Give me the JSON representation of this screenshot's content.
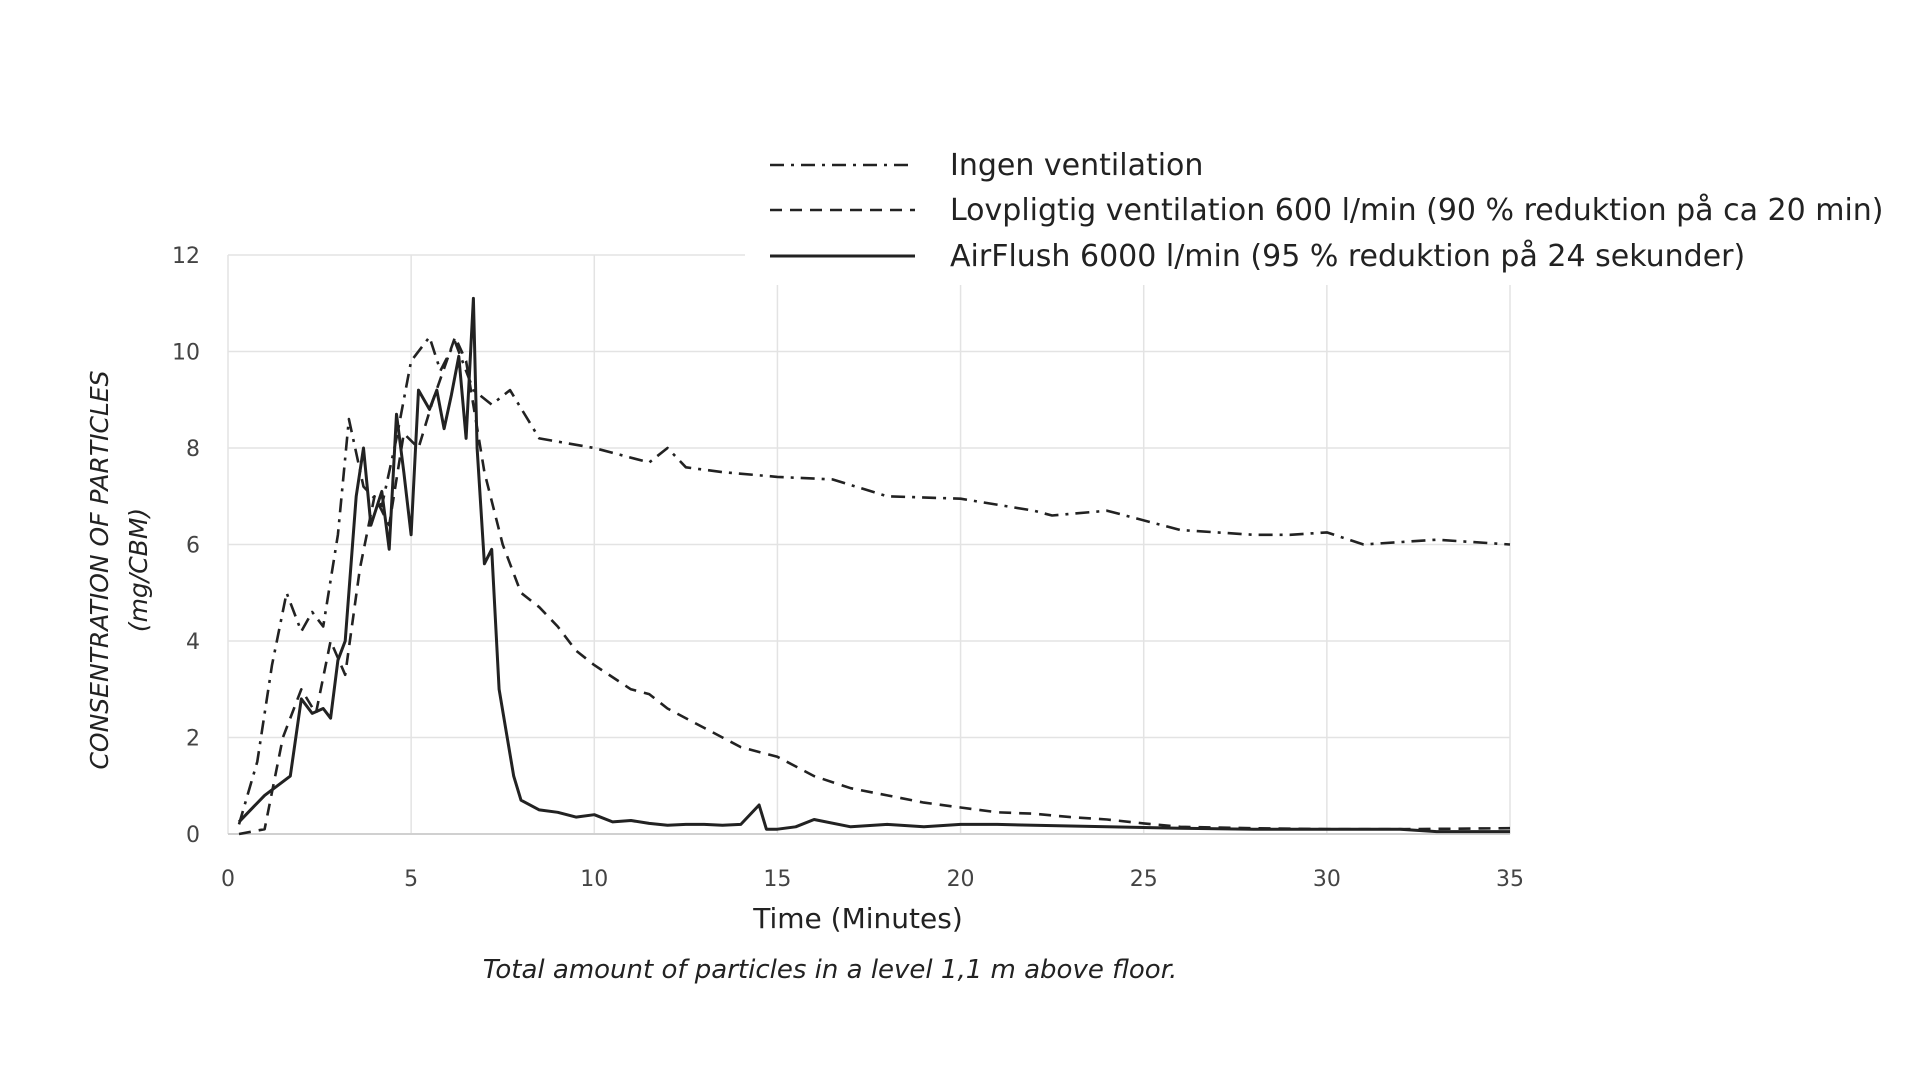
{
  "chart_data": {
    "type": "line",
    "caption": "Total amount of particles in a level 1,1 m above floor.",
    "xlabel": "Time (Minutes)",
    "ylabel_line1": "CONSENTRATION OF PARTICLES",
    "ylabel_line2": "(mg/CBM)",
    "xlim": [
      0,
      35
    ],
    "ylim": [
      0,
      12
    ],
    "xticks": [
      "0",
      "5",
      "10",
      "15",
      "20",
      "25",
      "30",
      "35"
    ],
    "yticks": [
      "0",
      "2",
      "4",
      "6",
      "8",
      "10",
      "12"
    ],
    "grid": true,
    "legend_position": "top-right",
    "series": [
      {
        "name": "Ingen ventilation",
        "style": "dashdot",
        "color": "#222222",
        "points": [
          [
            0.3,
            0.2
          ],
          [
            0.8,
            1.5
          ],
          [
            1.2,
            3.5
          ],
          [
            1.6,
            5.0
          ],
          [
            2.0,
            4.2
          ],
          [
            2.3,
            4.6
          ],
          [
            2.6,
            4.3
          ],
          [
            3.0,
            6.2
          ],
          [
            3.3,
            8.6
          ],
          [
            3.7,
            7.2
          ],
          [
            4.2,
            6.8
          ],
          [
            4.6,
            8.2
          ],
          [
            5.0,
            9.8
          ],
          [
            5.5,
            10.3
          ],
          [
            5.8,
            9.6
          ],
          [
            6.2,
            10.2
          ],
          [
            6.7,
            9.2
          ],
          [
            7.2,
            8.9
          ],
          [
            7.7,
            9.2
          ],
          [
            8.5,
            8.2
          ],
          [
            10,
            8.0
          ],
          [
            11.5,
            7.7
          ],
          [
            12,
            8.0
          ],
          [
            12.5,
            7.6
          ],
          [
            13.5,
            7.5
          ],
          [
            15,
            7.4
          ],
          [
            16.5,
            7.35
          ],
          [
            18,
            7.0
          ],
          [
            20,
            6.95
          ],
          [
            22,
            6.7
          ],
          [
            22.5,
            6.6
          ],
          [
            24,
            6.7
          ],
          [
            26,
            6.3
          ],
          [
            28,
            6.2
          ],
          [
            29,
            6.2
          ],
          [
            30,
            6.25
          ],
          [
            31,
            6.0
          ],
          [
            33,
            6.1
          ],
          [
            35,
            6.0
          ]
        ]
      },
      {
        "name": "Lovpligtig ventilation 600 l/min (90 % reduktion på ca 20 min)",
        "style": "dashed",
        "color": "#222222",
        "points": [
          [
            0.3,
            0
          ],
          [
            1.0,
            0.1
          ],
          [
            1.5,
            2.0
          ],
          [
            2.0,
            3.0
          ],
          [
            2.4,
            2.5
          ],
          [
            2.8,
            4.0
          ],
          [
            3.2,
            3.3
          ],
          [
            3.6,
            5.5
          ],
          [
            4.0,
            7.0
          ],
          [
            4.4,
            6.4
          ],
          [
            4.8,
            8.3
          ],
          [
            5.2,
            8.0
          ],
          [
            5.6,
            9.0
          ],
          [
            6.2,
            10.3
          ],
          [
            6.5,
            9.8
          ],
          [
            7.0,
            7.5
          ],
          [
            7.5,
            6.0
          ],
          [
            8.0,
            5.0
          ],
          [
            8.5,
            4.7
          ],
          [
            9.0,
            4.3
          ],
          [
            9.5,
            3.8
          ],
          [
            10,
            3.5
          ],
          [
            11,
            3.0
          ],
          [
            11.5,
            2.9
          ],
          [
            12,
            2.6
          ],
          [
            13,
            2.2
          ],
          [
            14,
            1.8
          ],
          [
            15,
            1.6
          ],
          [
            16,
            1.2
          ],
          [
            17,
            0.95
          ],
          [
            18,
            0.8
          ],
          [
            19,
            0.65
          ],
          [
            20,
            0.55
          ],
          [
            21,
            0.45
          ],
          [
            22,
            0.42
          ],
          [
            23,
            0.35
          ],
          [
            24,
            0.3
          ],
          [
            25,
            0.22
          ],
          [
            26,
            0.15
          ],
          [
            28,
            0.12
          ],
          [
            30,
            0.1
          ],
          [
            32,
            0.1
          ],
          [
            35,
            0.12
          ]
        ]
      },
      {
        "name": "AirFlush 6000 l/min  (95 % reduktion på 24 sekunder)",
        "style": "solid",
        "color": "#222222",
        "points": [
          [
            0.3,
            0.25
          ],
          [
            1.0,
            0.8
          ],
          [
            1.7,
            1.2
          ],
          [
            2.0,
            2.8
          ],
          [
            2.3,
            2.5
          ],
          [
            2.6,
            2.6
          ],
          [
            2.8,
            2.4
          ],
          [
            3.0,
            3.6
          ],
          [
            3.2,
            4.0
          ],
          [
            3.5,
            7.0
          ],
          [
            3.7,
            8.0
          ],
          [
            3.9,
            6.4
          ],
          [
            4.2,
            7.1
          ],
          [
            4.4,
            5.9
          ],
          [
            4.6,
            8.7
          ],
          [
            4.8,
            7.5
          ],
          [
            5.0,
            6.2
          ],
          [
            5.2,
            9.2
          ],
          [
            5.5,
            8.8
          ],
          [
            5.7,
            9.2
          ],
          [
            5.9,
            8.4
          ],
          [
            6.1,
            9.1
          ],
          [
            6.3,
            9.9
          ],
          [
            6.5,
            8.2
          ],
          [
            6.7,
            11.1
          ],
          [
            6.8,
            8.0
          ],
          [
            7.0,
            5.6
          ],
          [
            7.2,
            5.9
          ],
          [
            7.4,
            3.0
          ],
          [
            7.6,
            2.1
          ],
          [
            7.8,
            1.2
          ],
          [
            8.0,
            0.7
          ],
          [
            8.5,
            0.5
          ],
          [
            9.0,
            0.45
          ],
          [
            9.5,
            0.35
          ],
          [
            10,
            0.4
          ],
          [
            10.5,
            0.25
          ],
          [
            11,
            0.28
          ],
          [
            11.5,
            0.22
          ],
          [
            12,
            0.18
          ],
          [
            12.5,
            0.2
          ],
          [
            13,
            0.2
          ],
          [
            13.5,
            0.18
          ],
          [
            14,
            0.2
          ],
          [
            14.5,
            0.6
          ],
          [
            14.7,
            0.1
          ],
          [
            15,
            0.1
          ],
          [
            15.5,
            0.15
          ],
          [
            16,
            0.3
          ],
          [
            17,
            0.15
          ],
          [
            18,
            0.2
          ],
          [
            19,
            0.15
          ],
          [
            20,
            0.2
          ],
          [
            21,
            0.2
          ],
          [
            22,
            0.18
          ],
          [
            24,
            0.15
          ],
          [
            26,
            0.12
          ],
          [
            28,
            0.1
          ],
          [
            30,
            0.1
          ],
          [
            32,
            0.1
          ],
          [
            33,
            0.05
          ],
          [
            35,
            0.05
          ]
        ]
      }
    ]
  }
}
